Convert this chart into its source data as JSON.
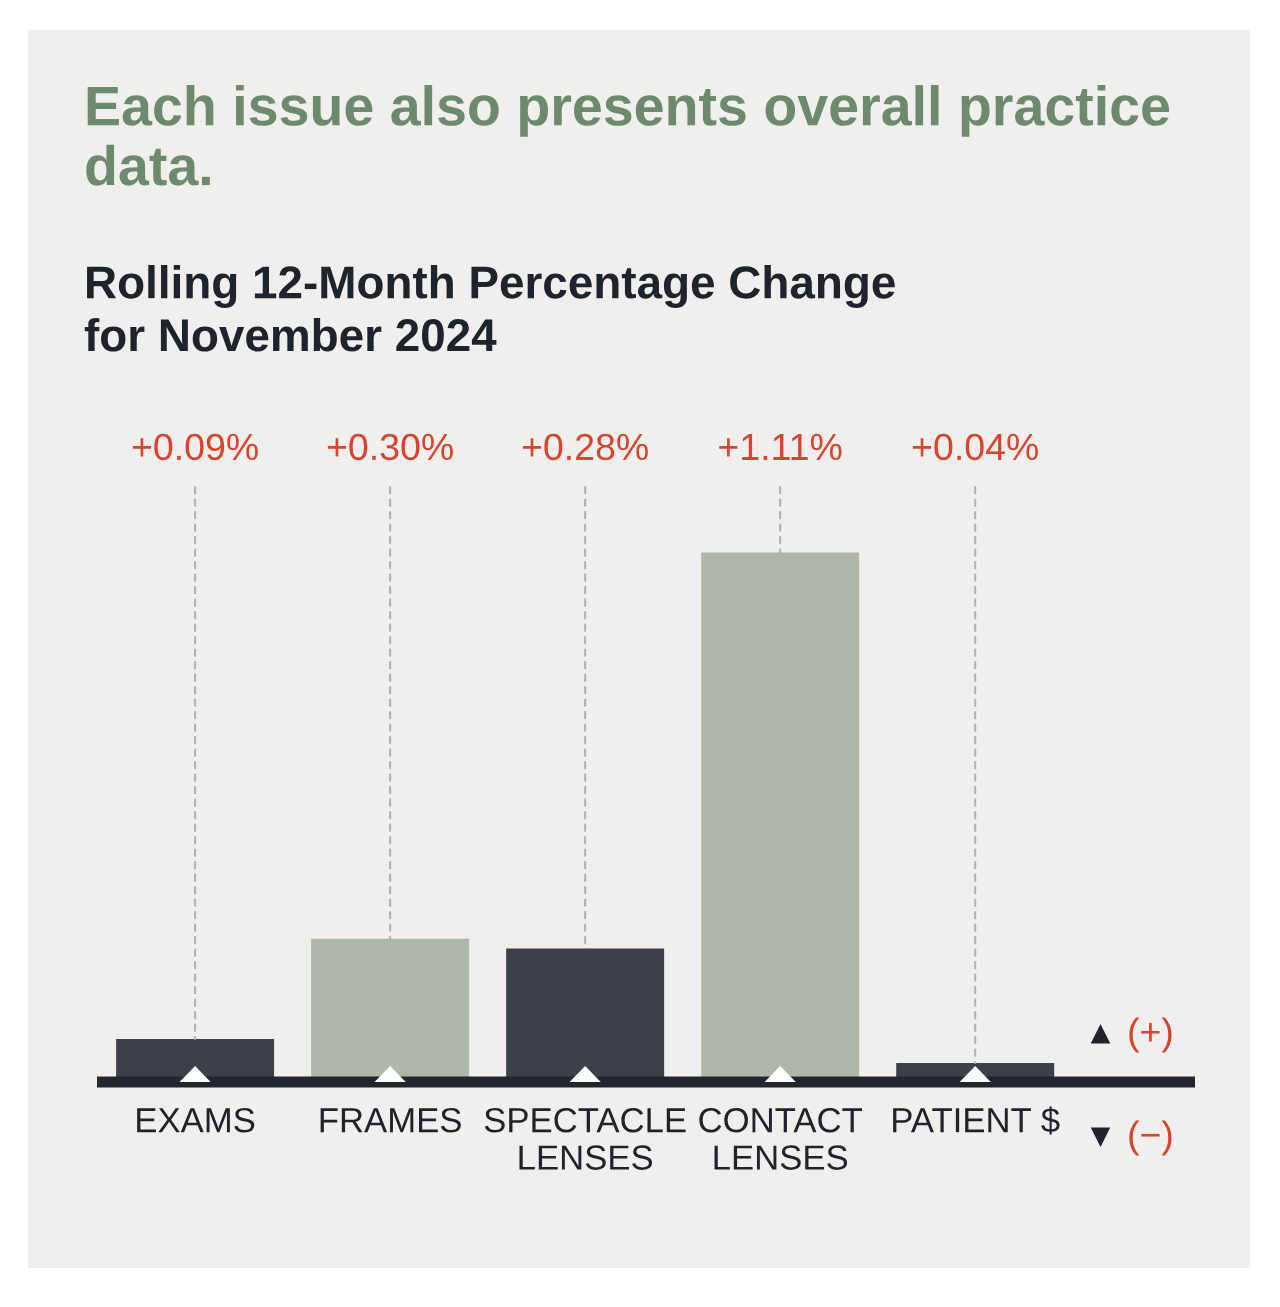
{
  "chart_data": {
    "type": "bar",
    "title": "Each issue also presents overall practice data.",
    "subtitle": "Rolling 12-Month Percentage Change\nfor November 2024",
    "categories": [
      "EXAMS",
      "FRAMES",
      "SPECTACLE\nLENSES",
      "CONTACT\nLENSES",
      "PATIENT $"
    ],
    "values": [
      0.09,
      0.3,
      0.28,
      1.11,
      0.04
    ],
    "colors": [
      "#3b4049",
      "#afb6aa",
      "#3b4049",
      "#afb6aa",
      "#3b4049"
    ],
    "value_labels": [
      "+0.09%",
      "+0.30%",
      "+0.28%",
      "+1.11%",
      "+0.04%"
    ],
    "annotations": [
      "▲ (+)",
      "▼ (−)"
    ],
    "grid": false,
    "legend": false
  }
}
